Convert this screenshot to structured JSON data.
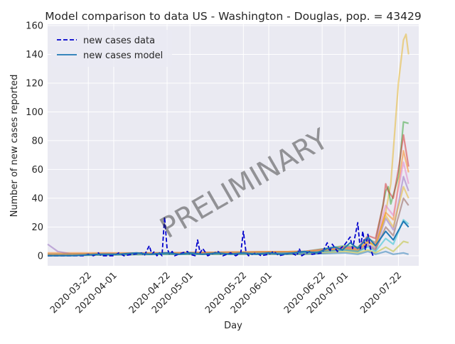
{
  "chart_data": {
    "type": "line",
    "title": "Model comparison to data US - Washington - Douglas, pop. = 43429",
    "xlabel": "Day",
    "ylabel": "Number of new cases reported",
    "watermark": "PRELIMINARY",
    "x_range": [
      "2020-03-06",
      "2020-07-30"
    ],
    "ylim": [
      -7,
      161
    ],
    "x_ticks": [
      "2020-03-22",
      "2020-04-01",
      "2020-04-22",
      "2020-05-01",
      "2020-05-22",
      "2020-06-01",
      "2020-06-22",
      "2020-07-01",
      "2020-07-22"
    ],
    "y_ticks": [
      0,
      20,
      40,
      60,
      80,
      100,
      120,
      140,
      160
    ],
    "grid": true,
    "legend_position": "top-left",
    "legend": [
      {
        "label": "new cases data",
        "style": "dashed",
        "color": "#0000cc"
      },
      {
        "label": "new cases model",
        "style": "solid",
        "color": "#1f77b4"
      }
    ],
    "colors": {
      "background": "#eaeaf2",
      "grid": "#ffffff",
      "data": "#0000cc",
      "model": "#1f77b4",
      "ensemble": [
        "#e6b422",
        "#2ca02c",
        "#d62728",
        "#ff7f0e",
        "#9467bd",
        "#8c564b",
        "#17becf",
        "#bcbd22",
        "#1f77b4",
        "#e377c2"
      ]
    },
    "series": [
      {
        "name": "new cases data",
        "points": [
          [
            "2020-03-06",
            0
          ],
          [
            "2020-03-20",
            0
          ],
          [
            "2020-03-22",
            1
          ],
          [
            "2020-03-24",
            0
          ],
          [
            "2020-03-26",
            2
          ],
          [
            "2020-03-27",
            0
          ],
          [
            "2020-04-01",
            0
          ],
          [
            "2020-04-03",
            2
          ],
          [
            "2020-04-05",
            0
          ],
          [
            "2020-04-12",
            2
          ],
          [
            "2020-04-13",
            0
          ],
          [
            "2020-04-15",
            7
          ],
          [
            "2020-04-16",
            1
          ],
          [
            "2020-04-17",
            3
          ],
          [
            "2020-04-18",
            0
          ],
          [
            "2020-04-19",
            2
          ],
          [
            "2020-04-20",
            0
          ],
          [
            "2020-04-21",
            27
          ],
          [
            "2020-04-22",
            5
          ],
          [
            "2020-04-23",
            1
          ],
          [
            "2020-04-24",
            3
          ],
          [
            "2020-04-25",
            0
          ],
          [
            "2020-04-28",
            2
          ],
          [
            "2020-04-30",
            3
          ],
          [
            "2020-05-01",
            1
          ],
          [
            "2020-05-03",
            0
          ],
          [
            "2020-05-04",
            11
          ],
          [
            "2020-05-05",
            2
          ],
          [
            "2020-05-06",
            5
          ],
          [
            "2020-05-08",
            0
          ],
          [
            "2020-05-12",
            3
          ],
          [
            "2020-05-14",
            0
          ],
          [
            "2020-05-17",
            2
          ],
          [
            "2020-05-19",
            0
          ],
          [
            "2020-05-21",
            2
          ],
          [
            "2020-05-22",
            17
          ],
          [
            "2020-05-23",
            3
          ],
          [
            "2020-05-24",
            0
          ],
          [
            "2020-05-27",
            2
          ],
          [
            "2020-05-29",
            0
          ],
          [
            "2020-06-01",
            1
          ],
          [
            "2020-06-03",
            3
          ],
          [
            "2020-06-05",
            0
          ],
          [
            "2020-06-10",
            2
          ],
          [
            "2020-06-12",
            0
          ],
          [
            "2020-06-13",
            5
          ],
          [
            "2020-06-14",
            0
          ],
          [
            "2020-06-17",
            3
          ],
          [
            "2020-06-18",
            1
          ],
          [
            "2020-06-22",
            2
          ],
          [
            "2020-06-24",
            9
          ],
          [
            "2020-06-25",
            3
          ],
          [
            "2020-06-26",
            8
          ],
          [
            "2020-06-28",
            3
          ],
          [
            "2020-07-01",
            8
          ],
          [
            "2020-07-03",
            13
          ],
          [
            "2020-07-04",
            5
          ],
          [
            "2020-07-06",
            23
          ],
          [
            "2020-07-07",
            4
          ],
          [
            "2020-07-08",
            17
          ],
          [
            "2020-07-09",
            4
          ],
          [
            "2020-07-10",
            15
          ],
          [
            "2020-07-11",
            5
          ],
          [
            "2020-07-12",
            0
          ]
        ]
      },
      {
        "name": "new cases model",
        "points": [
          [
            "2020-03-06",
            0
          ],
          [
            "2020-03-16",
            0
          ],
          [
            "2020-03-26",
            1
          ],
          [
            "2020-04-03",
            1
          ],
          [
            "2020-04-10",
            2
          ],
          [
            "2020-04-15",
            1
          ],
          [
            "2020-04-22",
            2
          ],
          [
            "2020-04-27",
            1
          ],
          [
            "2020-05-01",
            2
          ],
          [
            "2020-05-06",
            1
          ],
          [
            "2020-05-12",
            2
          ],
          [
            "2020-05-17",
            1
          ],
          [
            "2020-05-22",
            2
          ],
          [
            "2020-05-27",
            1
          ],
          [
            "2020-06-01",
            2
          ],
          [
            "2020-06-06",
            1
          ],
          [
            "2020-06-11",
            2
          ],
          [
            "2020-06-15",
            3
          ],
          [
            "2020-06-20",
            2
          ],
          [
            "2020-06-24",
            5
          ],
          [
            "2020-06-27",
            6
          ],
          [
            "2020-06-30",
            4
          ],
          [
            "2020-07-03",
            9
          ],
          [
            "2020-07-06",
            5
          ],
          [
            "2020-07-10",
            13
          ],
          [
            "2020-07-13",
            7
          ],
          [
            "2020-07-17",
            17
          ],
          [
            "2020-07-20",
            11
          ],
          [
            "2020-07-24",
            24
          ],
          [
            "2020-07-26",
            20
          ]
        ]
      },
      {
        "points": [
          [
            "2020-03-06",
            1
          ],
          [
            "2020-03-26",
            1
          ],
          [
            "2020-04-22",
            2
          ],
          [
            "2020-05-22",
            2
          ],
          [
            "2020-06-15",
            3
          ],
          [
            "2020-06-24",
            4
          ],
          [
            "2020-07-01",
            6
          ],
          [
            "2020-07-06",
            5
          ],
          [
            "2020-07-10",
            10
          ],
          [
            "2020-07-13",
            6
          ],
          [
            "2020-07-17",
            30
          ],
          [
            "2020-07-19",
            50
          ],
          [
            "2020-07-22",
            120
          ],
          [
            "2020-07-24",
            150
          ],
          [
            "2020-07-25",
            154
          ],
          [
            "2020-07-26",
            140
          ]
        ]
      },
      {
        "points": [
          [
            "2020-03-06",
            1
          ],
          [
            "2020-04-22",
            2
          ],
          [
            "2020-06-15",
            3
          ],
          [
            "2020-07-01",
            7
          ],
          [
            "2020-07-06",
            6
          ],
          [
            "2020-07-10",
            12
          ],
          [
            "2020-07-13",
            9
          ],
          [
            "2020-07-17",
            45
          ],
          [
            "2020-07-18",
            48
          ],
          [
            "2020-07-19",
            36
          ],
          [
            "2020-07-22",
            55
          ],
          [
            "2020-07-24",
            93
          ],
          [
            "2020-07-26",
            92
          ]
        ]
      },
      {
        "points": [
          [
            "2020-03-06",
            1
          ],
          [
            "2020-04-22",
            2
          ],
          [
            "2020-06-15",
            3
          ],
          [
            "2020-07-01",
            6
          ],
          [
            "2020-07-06",
            5
          ],
          [
            "2020-07-10",
            14
          ],
          [
            "2020-07-13",
            12
          ],
          [
            "2020-07-16",
            35
          ],
          [
            "2020-07-17",
            50
          ],
          [
            "2020-07-18",
            45
          ],
          [
            "2020-07-20",
            40
          ],
          [
            "2020-07-22",
            60
          ],
          [
            "2020-07-24",
            84
          ],
          [
            "2020-07-26",
            62
          ]
        ]
      },
      {
        "points": [
          [
            "2020-03-06",
            2
          ],
          [
            "2020-04-22",
            2
          ],
          [
            "2020-06-15",
            3
          ],
          [
            "2020-07-01",
            5
          ],
          [
            "2020-07-06",
            4
          ],
          [
            "2020-07-10",
            9
          ],
          [
            "2020-07-13",
            8
          ],
          [
            "2020-07-17",
            30
          ],
          [
            "2020-07-20",
            25
          ],
          [
            "2020-07-24",
            73
          ],
          [
            "2020-07-26",
            58
          ]
        ]
      },
      {
        "points": [
          [
            "2020-03-06",
            8
          ],
          [
            "2020-03-10",
            3
          ],
          [
            "2020-03-16",
            1
          ],
          [
            "2020-04-22",
            2
          ],
          [
            "2020-06-15",
            2
          ],
          [
            "2020-07-01",
            5
          ],
          [
            "2020-07-06",
            4
          ],
          [
            "2020-07-10",
            8
          ],
          [
            "2020-07-13",
            5
          ],
          [
            "2020-07-17",
            26
          ],
          [
            "2020-07-20",
            18
          ],
          [
            "2020-07-24",
            55
          ],
          [
            "2020-07-26",
            45
          ]
        ]
      },
      {
        "points": [
          [
            "2020-03-06",
            1
          ],
          [
            "2020-04-22",
            2
          ],
          [
            "2020-06-15",
            2
          ],
          [
            "2020-07-01",
            4
          ],
          [
            "2020-07-06",
            3
          ],
          [
            "2020-07-10",
            7
          ],
          [
            "2020-07-13",
            4
          ],
          [
            "2020-07-17",
            20
          ],
          [
            "2020-07-20",
            14
          ],
          [
            "2020-07-24",
            40
          ],
          [
            "2020-07-26",
            35
          ]
        ]
      },
      {
        "points": [
          [
            "2020-03-06",
            1
          ],
          [
            "2020-04-22",
            1
          ],
          [
            "2020-06-15",
            2
          ],
          [
            "2020-07-01",
            4
          ],
          [
            "2020-07-06",
            3
          ],
          [
            "2020-07-10",
            6
          ],
          [
            "2020-07-13",
            3
          ],
          [
            "2020-07-17",
            12
          ],
          [
            "2020-07-20",
            8
          ],
          [
            "2020-07-24",
            25
          ],
          [
            "2020-07-26",
            22
          ]
        ]
      },
      {
        "points": [
          [
            "2020-03-06",
            0
          ],
          [
            "2020-04-22",
            1
          ],
          [
            "2020-06-15",
            1
          ],
          [
            "2020-07-01",
            3
          ],
          [
            "2020-07-06",
            2
          ],
          [
            "2020-07-10",
            4
          ],
          [
            "2020-07-13",
            2
          ],
          [
            "2020-07-17",
            6
          ],
          [
            "2020-07-20",
            3
          ],
          [
            "2020-07-24",
            10
          ],
          [
            "2020-07-26",
            9
          ]
        ]
      },
      {
        "points": [
          [
            "2020-03-06",
            0
          ],
          [
            "2020-04-22",
            1
          ],
          [
            "2020-06-15",
            1
          ],
          [
            "2020-07-01",
            2
          ],
          [
            "2020-07-06",
            1
          ],
          [
            "2020-07-10",
            3
          ],
          [
            "2020-07-13",
            1
          ],
          [
            "2020-07-17",
            3
          ],
          [
            "2020-07-20",
            1
          ],
          [
            "2020-07-24",
            2
          ],
          [
            "2020-07-26",
            1
          ]
        ]
      },
      {
        "points": [
          [
            "2020-03-06",
            1
          ],
          [
            "2020-04-22",
            2
          ],
          [
            "2020-06-15",
            3
          ],
          [
            "2020-07-01",
            6
          ],
          [
            "2020-07-06",
            5
          ],
          [
            "2020-07-10",
            11
          ],
          [
            "2020-07-13",
            9
          ],
          [
            "2020-07-17",
            35
          ],
          [
            "2020-07-20",
            28
          ],
          [
            "2020-07-24",
            65
          ],
          [
            "2020-07-26",
            50
          ]
        ]
      },
      {
        "points": [
          [
            "2020-03-06",
            1
          ],
          [
            "2020-04-22",
            2
          ],
          [
            "2020-06-15",
            3
          ],
          [
            "2020-07-01",
            5
          ],
          [
            "2020-07-06",
            4
          ],
          [
            "2020-07-10",
            10
          ],
          [
            "2020-07-13",
            7
          ],
          [
            "2020-07-17",
            28
          ],
          [
            "2020-07-20",
            20
          ],
          [
            "2020-07-24",
            48
          ],
          [
            "2020-07-26",
            40
          ]
        ]
      }
    ]
  }
}
